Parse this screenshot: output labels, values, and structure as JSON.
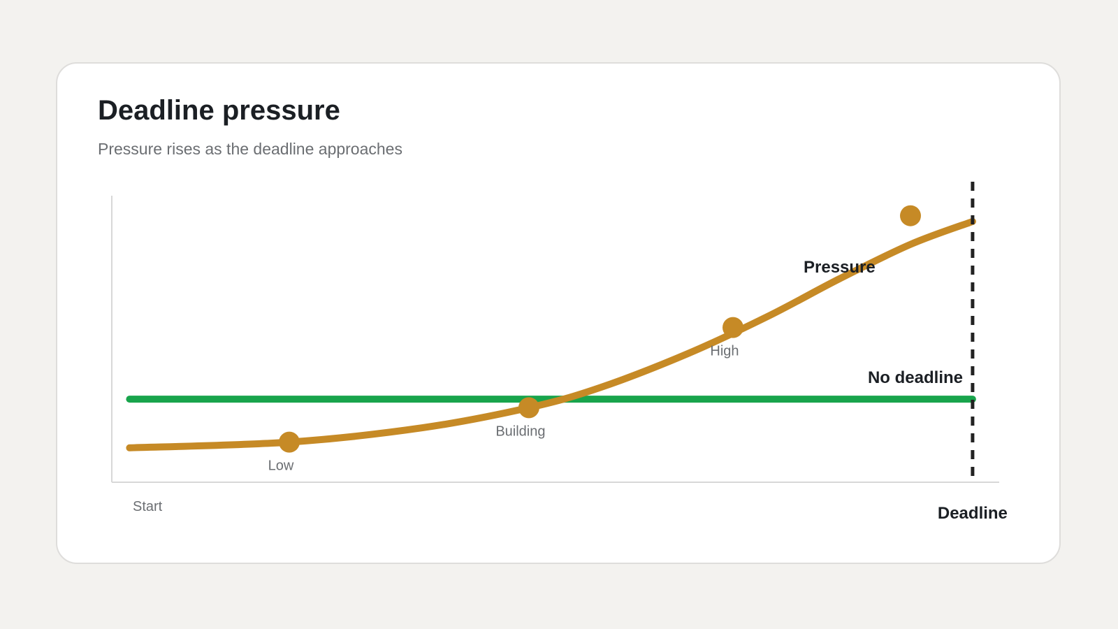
{
  "card": {
    "title": "Deadline pressure",
    "subtitle": "Pressure rises as the deadline approaches"
  },
  "chart_data": {
    "type": "line",
    "title": "Deadline pressure",
    "subtitle": "Pressure rises as the deadline approaches",
    "xlabel": "",
    "ylabel": "",
    "x_start_label": "Start",
    "x_end_label": "Deadline",
    "xlim": [
      0,
      1
    ],
    "ylim": [
      0,
      1
    ],
    "grid": false,
    "series": [
      {
        "name": "Pressure",
        "color": "#c68a26",
        "x": [
          0.02,
          0.2,
          0.35,
          0.47,
          0.55,
          0.65,
          0.74,
          0.82,
          0.9,
          0.97
        ],
        "y": [
          0.12,
          0.14,
          0.19,
          0.26,
          0.33,
          0.45,
          0.58,
          0.71,
          0.83,
          0.91
        ]
      },
      {
        "name": "No deadline",
        "color": "#18a44c",
        "x": [
          0.02,
          0.97
        ],
        "y": [
          0.29,
          0.29
        ]
      }
    ],
    "markers": [
      {
        "label": "Low",
        "x": 0.2,
        "y": 0.14
      },
      {
        "label": "Building",
        "x": 0.47,
        "y": 0.26
      },
      {
        "label": "High",
        "x": 0.7,
        "y": 0.54
      },
      {
        "label": "",
        "x": 0.9,
        "y": 0.93
      }
    ],
    "deadline_x": 0.97
  }
}
